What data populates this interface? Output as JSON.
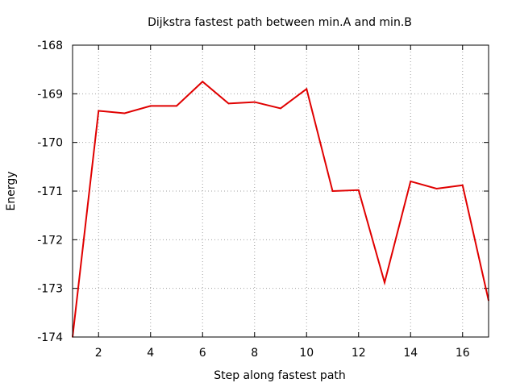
{
  "chart_data": {
    "type": "line",
    "title": "Dijkstra fastest path between min.A and min.B",
    "xlabel": "Step along fastest path",
    "ylabel": "Energy",
    "xlim": [
      1,
      17
    ],
    "ylim": [
      -174,
      -168
    ],
    "xticks": [
      2,
      4,
      6,
      8,
      10,
      12,
      14,
      16
    ],
    "yticks": [
      -174,
      -173,
      -172,
      -171,
      -170,
      -169,
      -168
    ],
    "grid": true,
    "color": "#e00000",
    "series": [
      {
        "x": [
          1,
          2,
          3,
          4,
          5,
          6,
          7,
          8,
          9,
          10,
          11,
          12,
          13,
          14,
          15,
          16,
          17
        ],
        "y": [
          -174.0,
          -169.35,
          -169.4,
          -169.25,
          -169.25,
          -168.75,
          -169.2,
          -169.17,
          -169.3,
          -168.9,
          -171.0,
          -170.98,
          -172.88,
          -170.8,
          -170.95,
          -170.88,
          -173.25
        ]
      }
    ]
  }
}
